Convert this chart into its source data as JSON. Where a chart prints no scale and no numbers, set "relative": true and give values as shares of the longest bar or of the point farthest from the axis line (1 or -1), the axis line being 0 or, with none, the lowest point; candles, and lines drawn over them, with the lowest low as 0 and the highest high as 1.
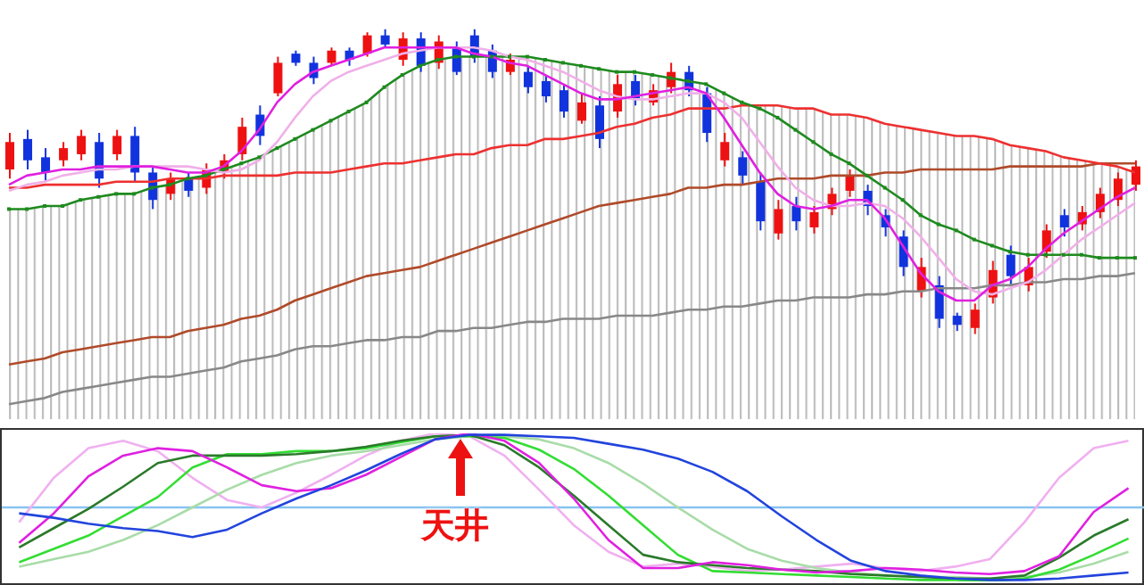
{
  "chart_data": [
    {
      "type": "candlestick",
      "relative": true,
      "categories": [
        null,
        null,
        null,
        null,
        null,
        null,
        null,
        null,
        null,
        null,
        null,
        null,
        null,
        null,
        null,
        null,
        null,
        null,
        null,
        null,
        null,
        null,
        null,
        null,
        null,
        null,
        null,
        null,
        null,
        null,
        null,
        null,
        null,
        null,
        null,
        null,
        null,
        null,
        null,
        null,
        null,
        null,
        null,
        null,
        null,
        null,
        null,
        null,
        null,
        null,
        null,
        null,
        null,
        null,
        null,
        null,
        null,
        null,
        null,
        null,
        null,
        null,
        null,
        null
      ],
      "ohlc": [
        [
          0.54,
          0.66,
          0.51,
          0.63
        ],
        [
          0.64,
          0.67,
          0.54,
          0.57
        ],
        [
          0.58,
          0.61,
          0.5,
          0.53
        ],
        [
          0.57,
          0.63,
          0.55,
          0.61
        ],
        [
          0.59,
          0.67,
          0.57,
          0.65
        ],
        [
          0.63,
          0.66,
          0.48,
          0.51
        ],
        [
          0.59,
          0.67,
          0.57,
          0.65
        ],
        [
          0.65,
          0.68,
          0.5,
          0.53
        ],
        [
          0.53,
          0.55,
          0.41,
          0.44
        ],
        [
          0.46,
          0.53,
          0.44,
          0.51
        ],
        [
          0.51,
          0.53,
          0.45,
          0.47
        ],
        [
          0.48,
          0.56,
          0.46,
          0.54
        ],
        [
          0.53,
          0.59,
          0.51,
          0.57
        ],
        [
          0.59,
          0.71,
          0.57,
          0.68
        ],
        [
          0.72,
          0.75,
          0.62,
          0.65
        ],
        [
          0.79,
          0.91,
          0.78,
          0.89
        ],
        [
          0.92,
          0.93,
          0.88,
          0.89
        ],
        [
          0.89,
          0.91,
          0.82,
          0.84
        ],
        [
          0.89,
          0.94,
          0.88,
          0.93
        ],
        [
          0.93,
          0.94,
          0.88,
          0.9
        ],
        [
          0.92,
          0.99,
          0.91,
          0.98
        ],
        [
          0.98,
          1.0,
          0.94,
          0.95
        ],
        [
          0.9,
          0.99,
          0.88,
          0.97
        ],
        [
          0.97,
          0.99,
          0.86,
          0.88
        ],
        [
          0.89,
          0.98,
          0.87,
          0.96
        ],
        [
          0.94,
          0.96,
          0.85,
          0.86
        ],
        [
          0.98,
          1.0,
          0.89,
          0.91
        ],
        [
          0.93,
          0.95,
          0.84,
          0.86
        ],
        [
          0.86,
          0.92,
          0.85,
          0.9
        ],
        [
          0.86,
          0.88,
          0.79,
          0.81
        ],
        [
          0.83,
          0.85,
          0.76,
          0.78
        ],
        [
          0.8,
          0.82,
          0.71,
          0.73
        ],
        [
          0.7,
          0.79,
          0.69,
          0.76
        ],
        [
          0.75,
          0.78,
          0.61,
          0.64
        ],
        [
          0.73,
          0.85,
          0.71,
          0.82
        ],
        [
          0.83,
          0.85,
          0.75,
          0.77
        ],
        [
          0.76,
          0.82,
          0.75,
          0.8
        ],
        [
          0.81,
          0.89,
          0.79,
          0.86
        ],
        [
          0.86,
          0.88,
          0.78,
          0.8
        ],
        [
          0.79,
          0.81,
          0.63,
          0.66
        ],
        [
          0.57,
          0.66,
          0.55,
          0.63
        ],
        [
          0.58,
          0.6,
          0.49,
          0.52
        ],
        [
          0.5,
          0.53,
          0.34,
          0.37
        ],
        [
          0.33,
          0.44,
          0.31,
          0.41
        ],
        [
          0.42,
          0.45,
          0.34,
          0.37
        ],
        [
          0.35,
          0.42,
          0.33,
          0.4
        ],
        [
          0.41,
          0.48,
          0.39,
          0.46
        ],
        [
          0.47,
          0.54,
          0.45,
          0.52
        ],
        [
          0.47,
          0.49,
          0.39,
          0.42
        ],
        [
          0.39,
          0.41,
          0.32,
          0.35
        ],
        [
          0.32,
          0.34,
          0.19,
          0.22
        ],
        [
          0.14,
          0.25,
          0.12,
          0.22
        ],
        [
          0.16,
          0.19,
          0.02,
          0.05
        ],
        [
          0.06,
          0.07,
          0.01,
          0.03
        ],
        [
          0.02,
          0.1,
          0.0,
          0.08
        ],
        [
          0.12,
          0.24,
          0.1,
          0.21
        ],
        [
          0.26,
          0.29,
          0.16,
          0.19
        ],
        [
          0.16,
          0.25,
          0.14,
          0.22
        ],
        [
          0.27,
          0.36,
          0.25,
          0.34
        ],
        [
          0.39,
          0.41,
          0.32,
          0.35
        ],
        [
          0.36,
          0.42,
          0.34,
          0.4
        ],
        [
          0.4,
          0.48,
          0.38,
          0.46
        ],
        [
          0.44,
          0.53,
          0.42,
          0.51
        ],
        [
          0.49,
          0.57,
          0.47,
          0.55
        ]
      ],
      "colors": [
        "#ee1111",
        "#1133dd",
        "#1133dd",
        "#ee1111",
        "#ee1111",
        "#1133dd",
        "#ee1111",
        "#1133dd",
        "#1133dd",
        "#ee1111",
        "#1133dd",
        "#ee1111",
        "#ee1111",
        "#ee1111",
        "#1133dd",
        "#ee1111",
        "#1133dd",
        "#1133dd",
        "#ee1111",
        "#1133dd",
        "#ee1111",
        "#1133dd",
        "#ee1111",
        "#1133dd",
        "#ee1111",
        "#1133dd",
        "#1133dd",
        "#1133dd",
        "#ee1111",
        "#1133dd",
        "#1133dd",
        "#1133dd",
        "#ee1111",
        "#1133dd",
        "#ee1111",
        "#1133dd",
        "#ee1111",
        "#ee1111",
        "#1133dd",
        "#1133dd",
        "#ee1111",
        "#1133dd",
        "#1133dd",
        "#ee1111",
        "#1133dd",
        "#ee1111",
        "#ee1111",
        "#ee1111",
        "#1133dd",
        "#1133dd",
        "#1133dd",
        "#ee1111",
        "#1133dd",
        "#1133dd",
        "#ee1111",
        "#ee1111",
        "#1133dd",
        "#ee1111",
        "#ee1111",
        "#1133dd",
        "#ee1111",
        "#ee1111",
        "#ee1111",
        "#ee1111"
      ],
      "series": [
        {
          "type": "area",
          "color": "#b8b8b8",
          "values": [
            0.41,
            0.41,
            0.42,
            0.42,
            0.44,
            0.45,
            0.46,
            0.46,
            0.48,
            0.49,
            0.51,
            0.52,
            0.54,
            0.56,
            0.58,
            0.61,
            0.64,
            0.67,
            0.7,
            0.73,
            0.76,
            0.81,
            0.85,
            0.88,
            0.9,
            0.91,
            0.91,
            0.91,
            0.91,
            0.91,
            0.9,
            0.89,
            0.88,
            0.87,
            0.86,
            0.86,
            0.85,
            0.84,
            0.83,
            0.82,
            0.79,
            0.76,
            0.75,
            0.75,
            0.74,
            0.74,
            0.72,
            0.72,
            0.71,
            0.69,
            0.68,
            0.67,
            0.66,
            0.65,
            0.65,
            0.64,
            0.62,
            0.61,
            0.6,
            0.58,
            0.57,
            0.56,
            0.55,
            0.53
          ]
        },
        {
          "type": "line",
          "color": "#888888",
          "values": [
            -0.23,
            -0.22,
            -0.21,
            -0.19,
            -0.18,
            -0.17,
            -0.16,
            -0.15,
            -0.14,
            -0.14,
            -0.13,
            -0.12,
            -0.11,
            -0.09,
            -0.08,
            -0.07,
            -0.05,
            -0.04,
            -0.04,
            -0.03,
            -0.02,
            -0.02,
            -0.01,
            -0.01,
            0.01,
            0.01,
            0.02,
            0.02,
            0.03,
            0.04,
            0.04,
            0.05,
            0.05,
            0.05,
            0.06,
            0.06,
            0.06,
            0.07,
            0.08,
            0.08,
            0.09,
            0.09,
            0.1,
            0.11,
            0.11,
            0.12,
            0.12,
            0.12,
            0.13,
            0.13,
            0.14,
            0.14,
            0.15,
            0.15,
            0.15,
            0.16,
            0.16,
            0.17,
            0.17,
            0.18,
            0.18,
            0.19,
            0.19,
            0.2
          ]
        },
        {
          "type": "line",
          "color": "#b04a2a",
          "values": [
            -0.1,
            -0.09,
            -0.08,
            -0.06,
            -0.05,
            -0.04,
            -0.03,
            -0.02,
            -0.01,
            -0.01,
            0.01,
            0.02,
            0.03,
            0.05,
            0.06,
            0.08,
            0.11,
            0.13,
            0.15,
            0.17,
            0.19,
            0.2,
            0.21,
            0.22,
            0.24,
            0.26,
            0.28,
            0.3,
            0.32,
            0.34,
            0.36,
            0.38,
            0.4,
            0.42,
            0.43,
            0.44,
            0.45,
            0.46,
            0.48,
            0.48,
            0.49,
            0.49,
            0.5,
            0.51,
            0.51,
            0.51,
            0.52,
            0.52,
            0.52,
            0.53,
            0.53,
            0.54,
            0.54,
            0.54,
            0.54,
            0.54,
            0.55,
            0.55,
            0.55,
            0.55,
            0.55,
            0.56,
            0.56,
            0.56
          ]
        },
        {
          "type": "line",
          "color": "#ee3030",
          "values": [
            0.48,
            0.48,
            0.49,
            0.49,
            0.49,
            0.49,
            0.5,
            0.5,
            0.5,
            0.51,
            0.51,
            0.51,
            0.52,
            0.52,
            0.52,
            0.52,
            0.53,
            0.53,
            0.53,
            0.54,
            0.55,
            0.56,
            0.56,
            0.57,
            0.58,
            0.59,
            0.59,
            0.61,
            0.62,
            0.62,
            0.64,
            0.64,
            0.65,
            0.66,
            0.68,
            0.69,
            0.71,
            0.72,
            0.74,
            0.74,
            0.74,
            0.75,
            0.75,
            0.75,
            0.74,
            0.74,
            0.72,
            0.72,
            0.71,
            0.69,
            0.68,
            0.67,
            0.66,
            0.65,
            0.65,
            0.64,
            0.62,
            0.61,
            0.6,
            0.58,
            0.57,
            0.56,
            0.55,
            0.53
          ]
        },
        {
          "type": "line",
          "color": "#1e8a1e",
          "marker": "square",
          "values": [
            0.41,
            0.41,
            0.42,
            0.42,
            0.44,
            0.45,
            0.46,
            0.46,
            0.48,
            0.49,
            0.51,
            0.52,
            0.54,
            0.56,
            0.58,
            0.61,
            0.64,
            0.67,
            0.7,
            0.73,
            0.76,
            0.81,
            0.85,
            0.88,
            0.9,
            0.91,
            0.91,
            0.91,
            0.91,
            0.91,
            0.9,
            0.89,
            0.88,
            0.87,
            0.86,
            0.86,
            0.85,
            0.84,
            0.83,
            0.82,
            0.79,
            0.76,
            0.74,
            0.71,
            0.67,
            0.63,
            0.59,
            0.56,
            0.52,
            0.48,
            0.44,
            0.39,
            0.36,
            0.34,
            0.31,
            0.29,
            0.27,
            0.26,
            0.26,
            0.26,
            0.26,
            0.25,
            0.25,
            0.25
          ]
        },
        {
          "type": "line",
          "color": "#f0b0e8",
          "values": [
            0.47,
            0.49,
            0.5,
            0.52,
            0.53,
            0.54,
            0.54,
            0.55,
            0.55,
            0.55,
            0.55,
            0.54,
            0.53,
            0.54,
            0.57,
            0.63,
            0.71,
            0.78,
            0.83,
            0.86,
            0.88,
            0.9,
            0.92,
            0.93,
            0.94,
            0.94,
            0.94,
            0.93,
            0.91,
            0.9,
            0.88,
            0.86,
            0.83,
            0.8,
            0.78,
            0.77,
            0.77,
            0.78,
            0.79,
            0.79,
            0.76,
            0.71,
            0.63,
            0.55,
            0.48,
            0.44,
            0.42,
            0.42,
            0.43,
            0.42,
            0.38,
            0.32,
            0.25,
            0.18,
            0.14,
            0.13,
            0.15,
            0.17,
            0.21,
            0.26,
            0.31,
            0.35,
            0.39,
            0.43
          ]
        },
        {
          "type": "line",
          "color": "#e020e0",
          "values": [
            0.49,
            0.52,
            0.53,
            0.54,
            0.54,
            0.55,
            0.55,
            0.55,
            0.55,
            0.54,
            0.53,
            0.53,
            0.55,
            0.6,
            0.67,
            0.76,
            0.82,
            0.86,
            0.88,
            0.9,
            0.92,
            0.94,
            0.94,
            0.94,
            0.94,
            0.94,
            0.92,
            0.91,
            0.89,
            0.88,
            0.85,
            0.82,
            0.79,
            0.77,
            0.77,
            0.78,
            0.79,
            0.8,
            0.81,
            0.79,
            0.71,
            0.62,
            0.53,
            0.46,
            0.42,
            0.41,
            0.42,
            0.44,
            0.44,
            0.38,
            0.29,
            0.2,
            0.14,
            0.11,
            0.11,
            0.16,
            0.18,
            0.22,
            0.28,
            0.33,
            0.37,
            0.41,
            0.45,
            0.48
          ]
        }
      ]
    },
    {
      "type": "line",
      "relative": true,
      "categories": [
        null,
        null,
        null,
        null,
        null,
        null,
        null,
        null,
        null,
        null,
        null,
        null,
        null,
        null,
        null,
        null,
        null,
        null,
        null,
        null,
        null,
        null,
        null,
        null,
        null,
        null,
        null,
        null,
        null,
        null,
        null,
        null,
        null
      ],
      "annotations": [
        "天井"
      ],
      "ref_lines": [
        {
          "axis": "y",
          "value": 0.5,
          "color": "#88c4f0"
        }
      ],
      "series": [
        {
          "color": "#f0b0f0",
          "values": [
            0.4,
            0.7,
            0.9,
            0.95,
            0.88,
            0.7,
            0.55,
            0.5,
            0.6,
            0.72,
            0.85,
            0.95,
            1.0,
            0.98,
            0.85,
            0.62,
            0.38,
            0.2,
            0.1,
            0.12,
            0.1,
            0.07,
            0.08,
            0.1,
            0.12,
            0.09,
            0.07,
            0.1,
            0.15,
            0.4,
            0.7,
            0.9,
            0.95
          ]
        },
        {
          "color": "#a8dca8",
          "values": [
            0.1,
            0.15,
            0.2,
            0.28,
            0.38,
            0.5,
            0.62,
            0.72,
            0.8,
            0.85,
            0.88,
            0.92,
            0.96,
            0.98,
            0.98,
            0.96,
            0.9,
            0.8,
            0.66,
            0.5,
            0.35,
            0.22,
            0.14,
            0.09,
            0.06,
            0.04,
            0.03,
            0.03,
            0.02,
            0.03,
            0.06,
            0.12,
            0.2
          ]
        },
        {
          "color": "#33dd33",
          "values": [
            0.13,
            0.22,
            0.31,
            0.44,
            0.57,
            0.77,
            0.86,
            0.86,
            0.88,
            0.88,
            0.9,
            0.94,
            0.98,
            0.98,
            0.97,
            0.89,
            0.76,
            0.58,
            0.38,
            0.18,
            0.07,
            0.06,
            0.05,
            0.04,
            0.03,
            0.02,
            0.01,
            0.01,
            0.0,
            0.02,
            0.08,
            0.18,
            0.29
          ]
        },
        {
          "color": "#2a7a2a",
          "values": [
            0.23,
            0.36,
            0.49,
            0.64,
            0.8,
            0.85,
            0.85,
            0.85,
            0.86,
            0.88,
            0.91,
            0.95,
            0.98,
            0.99,
            0.92,
            0.77,
            0.58,
            0.38,
            0.18,
            0.13,
            0.11,
            0.09,
            0.08,
            0.07,
            0.05,
            0.04,
            0.03,
            0.02,
            0.02,
            0.04,
            0.16,
            0.31,
            0.42
          ]
        },
        {
          "color": "#e020e0",
          "values": [
            0.26,
            0.46,
            0.71,
            0.85,
            0.9,
            0.88,
            0.77,
            0.65,
            0.61,
            0.63,
            0.72,
            0.84,
            0.96,
            1.0,
            0.95,
            0.8,
            0.56,
            0.28,
            0.09,
            0.09,
            0.13,
            0.11,
            0.08,
            0.06,
            0.07,
            0.09,
            0.08,
            0.06,
            0.05,
            0.07,
            0.17,
            0.47,
            0.63
          ]
        },
        {
          "color": "#2244dd",
          "values": [
            0.46,
            0.43,
            0.39,
            0.36,
            0.34,
            0.3,
            0.35,
            0.46,
            0.56,
            0.65,
            0.75,
            0.86,
            0.96,
            0.99,
            0.99,
            0.98,
            0.97,
            0.93,
            0.89,
            0.83,
            0.74,
            0.61,
            0.44,
            0.28,
            0.14,
            0.07,
            0.04,
            0.02,
            0.01,
            0.01,
            0.02,
            0.04,
            0.06
          ]
        }
      ]
    }
  ]
}
